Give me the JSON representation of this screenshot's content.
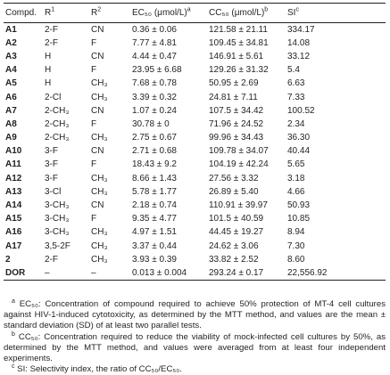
{
  "table": {
    "header": [
      {
        "text": "Compd.",
        "note": null
      },
      {
        "text": "R",
        "note": "1"
      },
      {
        "text": "R",
        "note": "2"
      },
      {
        "text": "EC₅₀ (μmol/L)",
        "note": "a"
      },
      {
        "text": "CC₅₀ (μmol/L)",
        "note": "b"
      },
      {
        "text": "SI",
        "note": "c"
      }
    ],
    "rows": [
      [
        "A1",
        "2-F",
        "CN",
        "0.36 ± 0.06",
        "121.58 ± 21.11",
        "334.17"
      ],
      [
        "A2",
        "2-F",
        "F",
        "7.77 ± 4.81",
        "109.45 ± 34.81",
        "14.08"
      ],
      [
        "A3",
        "H",
        "CN",
        "4.44 ± 0.47",
        "146.91 ± 5.61",
        "33.12"
      ],
      [
        "A4",
        "H",
        "F",
        "23.95 ± 6.68",
        "129.26 ± 31.32",
        "5.4"
      ],
      [
        "A5",
        "H",
        "CH₃",
        "7.68 ± 0.78",
        "50.95 ± 2.69",
        "6.63"
      ],
      [
        "A6",
        "2-Cl",
        "CH₃",
        "3.39 ± 0.32",
        "24.81 ± 7.11",
        "7.33"
      ],
      [
        "A7",
        "2-CH₃",
        "CN",
        "1.07 ± 0.24",
        "107.5 ± 34.42",
        "100.52"
      ],
      [
        "A8",
        "2-CH₃",
        "F",
        "30.78 ± 0",
        "71.96 ± 24.52",
        "2.34"
      ],
      [
        "A9",
        "2-CH₃",
        "CH₃",
        "2.75 ± 0.67",
        "99.96 ± 34.43",
        "36.30"
      ],
      [
        "A10",
        "3-F",
        "CN",
        "2.71 ± 0.68",
        "109.78 ± 34.07",
        "40.44"
      ],
      [
        "A11",
        "3-F",
        "F",
        "18.43 ± 9.2",
        "104.19 ± 42.24",
        "5.65"
      ],
      [
        "A12",
        "3-F",
        "CH₃",
        "8.66 ± 1.43",
        "27.56 ± 3.32",
        "3.18"
      ],
      [
        "A13",
        "3-Cl",
        "CH₃",
        "5.78 ± 1.77",
        "26.89 ± 5.40",
        "4.66"
      ],
      [
        "A14",
        "3-CH₃",
        "CN",
        "2.18 ± 0.74",
        "110.91 ± 39.97",
        "50.93"
      ],
      [
        "A15",
        "3-CH₃",
        "F",
        "9.35 ± 4.77",
        "101.5 ± 40.59",
        "10.85"
      ],
      [
        "A16",
        "3-CH₃",
        "CH₃",
        "4.97 ± 1.51",
        "44.45 ± 19.27",
        "8.94"
      ],
      [
        "A17",
        "3,5-2F",
        "CH₃",
        "3.37 ± 0.44",
        "24.62 ± 3.06",
        "7.30"
      ],
      [
        "2",
        "2-F",
        "CH₃",
        "3.93 ± 0.39",
        "33.82 ± 2.52",
        "8.60"
      ],
      [
        "DOR",
        "–",
        "–",
        "0.013 ± 0.004",
        "293.24 ± 0.17",
        "22,556.92"
      ]
    ]
  },
  "footnotes": [
    {
      "mark": "a",
      "text": "EC₅₀: Concentration of compound required to achieve 50% protection of MT-4 cell cultures against HIV-1-induced cytotoxicity, as determined by the MTT method, and values are the mean ± standard deviation (SD) of at least two parallel tests."
    },
    {
      "mark": "b",
      "text": "CC₅₀: Concentration required to reduce the viability of mock-infected cell cultures by 50%, as determined by the MTT method, and values were averaged from at least four independent experiments."
    },
    {
      "mark": "c",
      "text": "SI: Selectivity index, the ratio of CC₅₀/EC₅₀."
    }
  ]
}
